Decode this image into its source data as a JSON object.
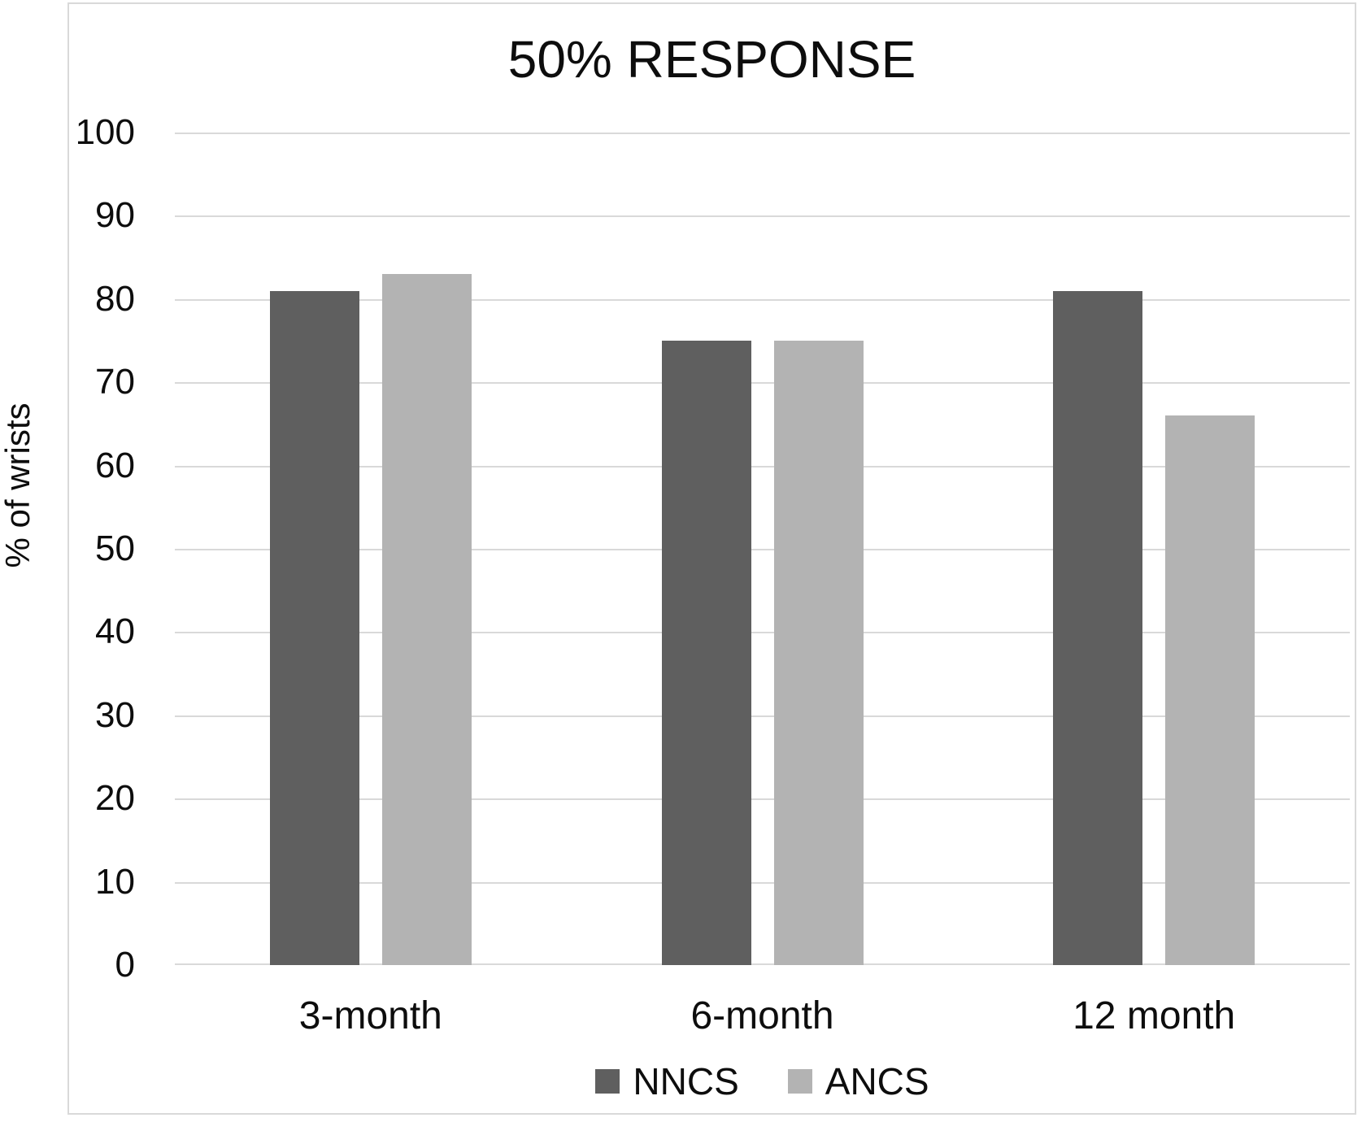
{
  "background": "#ffffff",
  "chart_data": {
    "type": "bar",
    "title": "50% RESPONSE",
    "xlabel": "",
    "ylabel": "% of wrists",
    "categories": [
      "3-month",
      "6-month",
      "12 month"
    ],
    "series": [
      {
        "name": "NNCS",
        "color": "#5f5f5f",
        "values": [
          81,
          75,
          81
        ]
      },
      {
        "name": "ANCS",
        "color": "#b3b3b3",
        "values": [
          83,
          75,
          66
        ]
      }
    ],
    "ylim": [
      0,
      100
    ],
    "ytick_step": 10,
    "ytick_labels": [
      "0",
      "10",
      "20",
      "30",
      "40",
      "50",
      "60",
      "70",
      "80",
      "90",
      "100"
    ],
    "grid": true,
    "gridline_color": "#d9d9d9",
    "frame_color": "#d9d9d9",
    "text_color": "#0d0d0d",
    "legend_position": "bottom"
  }
}
